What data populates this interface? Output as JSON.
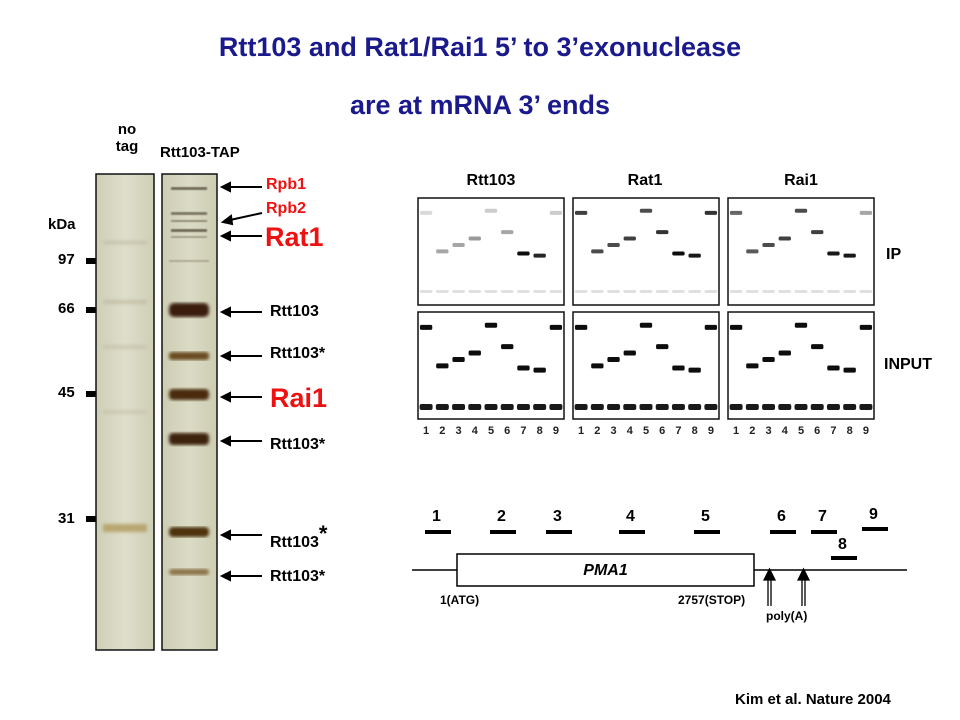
{
  "title": {
    "line1": "Rtt103 and Rat1/Rai1 5’ to 3’exonuclease",
    "line2": "are at mRNA 3’ ends"
  },
  "gel": {
    "lane_no_tag_line1": "no",
    "lane_no_tag_line2": "tag",
    "lane_tap": "Rtt103-TAP",
    "kda_label": "kDa",
    "markers": [
      "97",
      "66",
      "45",
      "31"
    ],
    "bands": [
      {
        "label": "Rpb1",
        "color": "#ee1111"
      },
      {
        "label": "Rpb2",
        "color": "#ee1111"
      },
      {
        "label": "Rat1",
        "color": "#ee1111"
      },
      {
        "label": "Rtt103",
        "color": "#000000"
      },
      {
        "label": "Rtt103*",
        "color": "#000000"
      },
      {
        "label": "Rai1",
        "color": "#ee1111"
      },
      {
        "label": "Rtt103*",
        "color": "#000000"
      },
      {
        "label": "Rtt103",
        "star": "*",
        "color": "#000000"
      },
      {
        "label": "Rtt103*",
        "color": "#000000"
      }
    ]
  },
  "chip": {
    "panels": [
      "Rtt103",
      "Rat1",
      "Rai1"
    ],
    "rows": [
      "IP",
      "INPUT"
    ],
    "lanes": [
      "1",
      "2",
      "3",
      "4",
      "5",
      "6",
      "7",
      "8",
      "9"
    ]
  },
  "gene": {
    "name": "PMA1",
    "start_label": "1(ATG)",
    "stop_label": "2757(STOP)",
    "polya_label": "poly(A)",
    "probes": [
      "1",
      "2",
      "3",
      "4",
      "5",
      "6",
      "7",
      "8",
      "9"
    ]
  },
  "citation": "Kim et al.  Nature 2004"
}
